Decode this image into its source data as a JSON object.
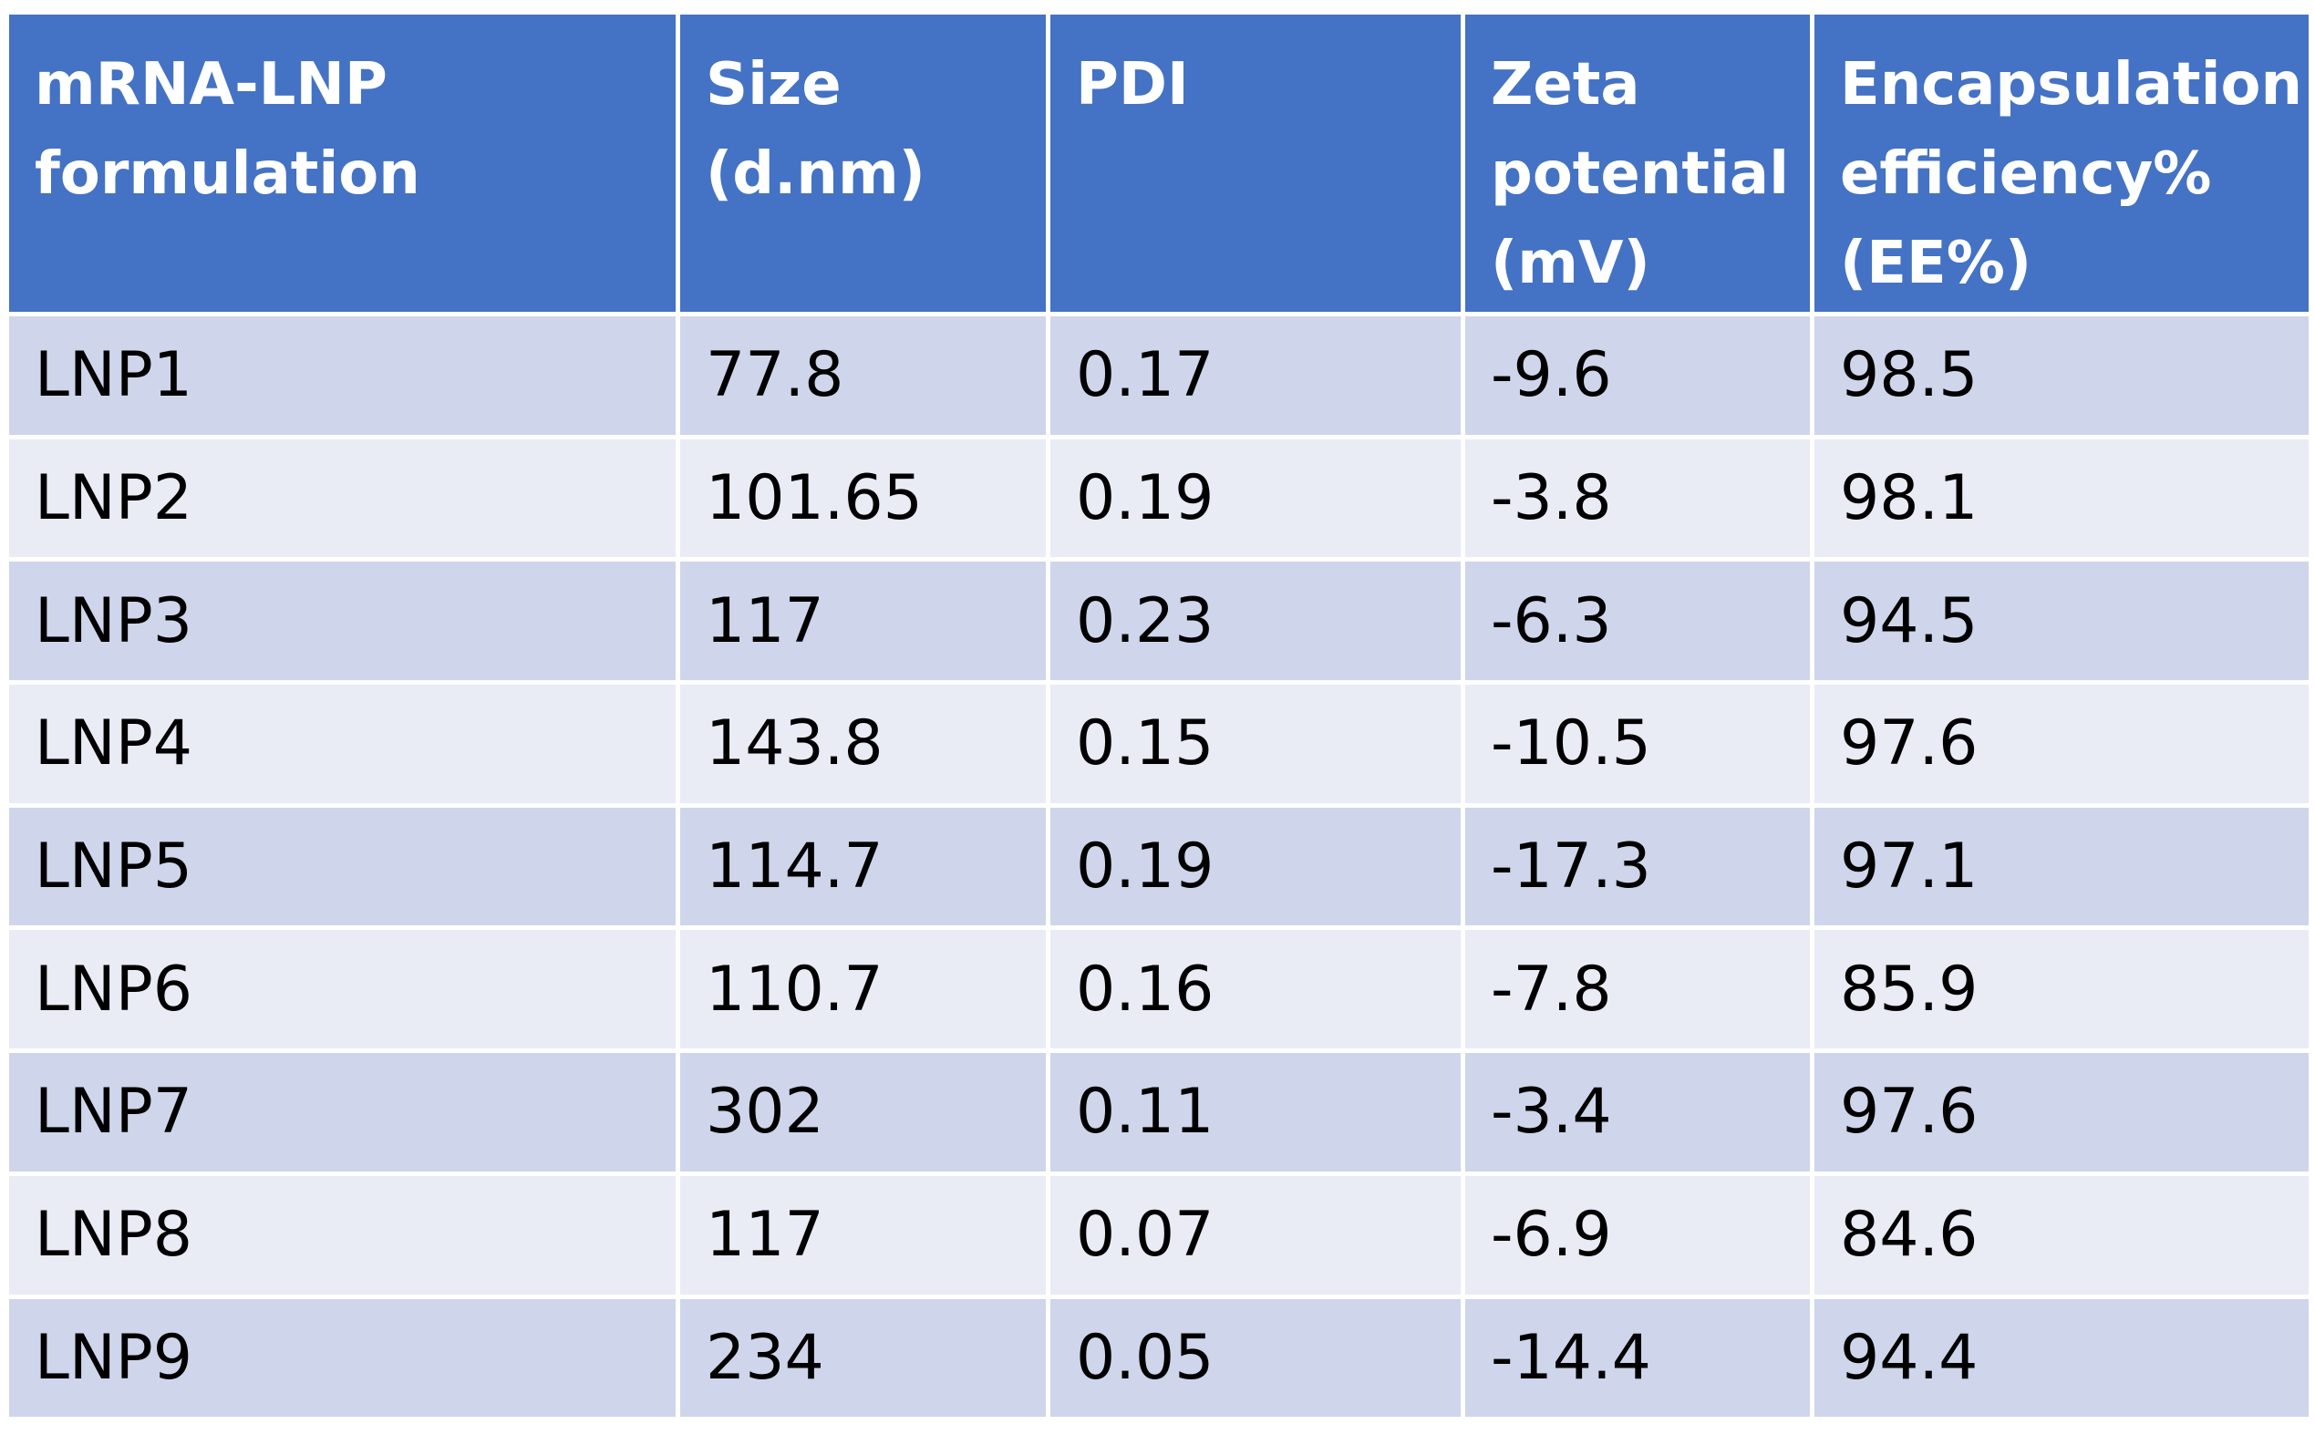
{
  "table": {
    "headers": [
      [
        "mRNA-LNP",
        "formulation"
      ],
      [
        "Size",
        "(d.nm)"
      ],
      [
        "PDI"
      ],
      [
        "Zeta",
        "potential",
        "(mV)"
      ],
      [
        "Encapsulation",
        "efficiency%",
        "(EE%)"
      ]
    ],
    "rows": [
      [
        "LNP1",
        "77.8",
        "0.17",
        "-9.6",
        "98.5"
      ],
      [
        "LNP2",
        "101.65",
        "0.19",
        "-3.8",
        "98.1"
      ],
      [
        "LNP3",
        "117",
        "0.23",
        "-6.3",
        "94.5"
      ],
      [
        "LNP4",
        "143.8",
        "0.15",
        "-10.5",
        "97.6"
      ],
      [
        "LNP5",
        "114.7",
        "0.19",
        "-17.3",
        "97.1"
      ],
      [
        "LNP6",
        "110.7",
        "0.16",
        "-7.8",
        "85.9"
      ],
      [
        "LNP7",
        "302",
        "0.11",
        "-3.4",
        "97.6"
      ],
      [
        "LNP8",
        "117",
        "0.07",
        "-6.9",
        "84.6"
      ],
      [
        "LNP9",
        "234",
        "0.05",
        "-14.4",
        "94.4"
      ]
    ],
    "colors": {
      "header_bg": "#4472c4",
      "row_odd_bg": "#cfd5ea",
      "row_even_bg": "#e9ebf5",
      "border": "#ffffff"
    }
  }
}
